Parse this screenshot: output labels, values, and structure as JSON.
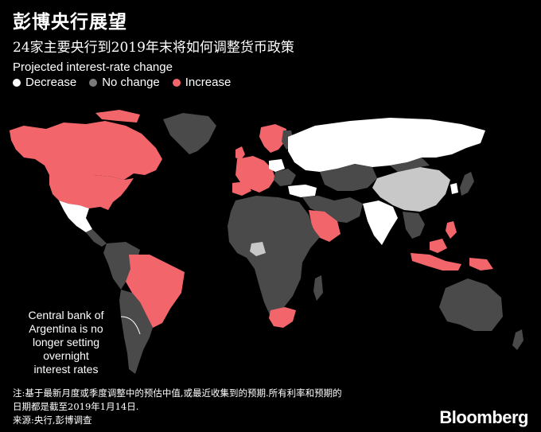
{
  "header": {
    "title": "彭博央行展望",
    "subtitle": "24家主要央行到2019年末将如何调整货币政策"
  },
  "legend": {
    "title": "Projected interest-rate change",
    "items": [
      {
        "label": "Decrease",
        "color": "#ffffff"
      },
      {
        "label": "No change",
        "color": "#7a7a7a"
      },
      {
        "label": "Increase",
        "color": "#f2666b"
      }
    ]
  },
  "map": {
    "colors": {
      "decrease": "#ffffff",
      "no_change": "#4a4a4a",
      "increase": "#f2666b",
      "no_forecast": "#c8c8c8",
      "background": "#000000"
    },
    "regions": [
      {
        "name": "Canada",
        "status": "increase"
      },
      {
        "name": "United States",
        "status": "increase"
      },
      {
        "name": "Mexico",
        "status": "decrease"
      },
      {
        "name": "Brazil",
        "status": "increase"
      },
      {
        "name": "Argentina",
        "status": "no_change"
      },
      {
        "name": "Norway",
        "status": "increase"
      },
      {
        "name": "Sweden",
        "status": "increase"
      },
      {
        "name": "United Kingdom",
        "status": "increase"
      },
      {
        "name": "Euro Area",
        "status": "increase"
      },
      {
        "name": "Poland",
        "status": "decrease"
      },
      {
        "name": "Czech Republic",
        "status": "increase"
      },
      {
        "name": "Russia",
        "status": "decrease"
      },
      {
        "name": "Turkey",
        "status": "decrease"
      },
      {
        "name": "Saudi Arabia",
        "status": "increase"
      },
      {
        "name": "India",
        "status": "decrease"
      },
      {
        "name": "China",
        "status": "no_forecast"
      },
      {
        "name": "Japan",
        "status": "no_change"
      },
      {
        "name": "South Korea",
        "status": "decrease"
      },
      {
        "name": "Indonesia",
        "status": "increase"
      },
      {
        "name": "Philippines",
        "status": "increase"
      },
      {
        "name": "Australia",
        "status": "no_change"
      },
      {
        "name": "New Zealand",
        "status": "no_change"
      },
      {
        "name": "South Africa",
        "status": "increase"
      },
      {
        "name": "Nigeria",
        "status": "no_forecast"
      }
    ]
  },
  "annotation": {
    "lines": [
      "Central bank of",
      "Argentina is no",
      "longer setting",
      "overnight",
      "interest rates"
    ]
  },
  "footnote": {
    "lines": [
      "注:基于最新月度或季度调整中的预估中值,或最近收集到的预期.所有利率和预期的",
      "日期都是截至2019年1月14日.",
      "来源:央行,彭博调查"
    ]
  },
  "brand": "Bloomberg"
}
